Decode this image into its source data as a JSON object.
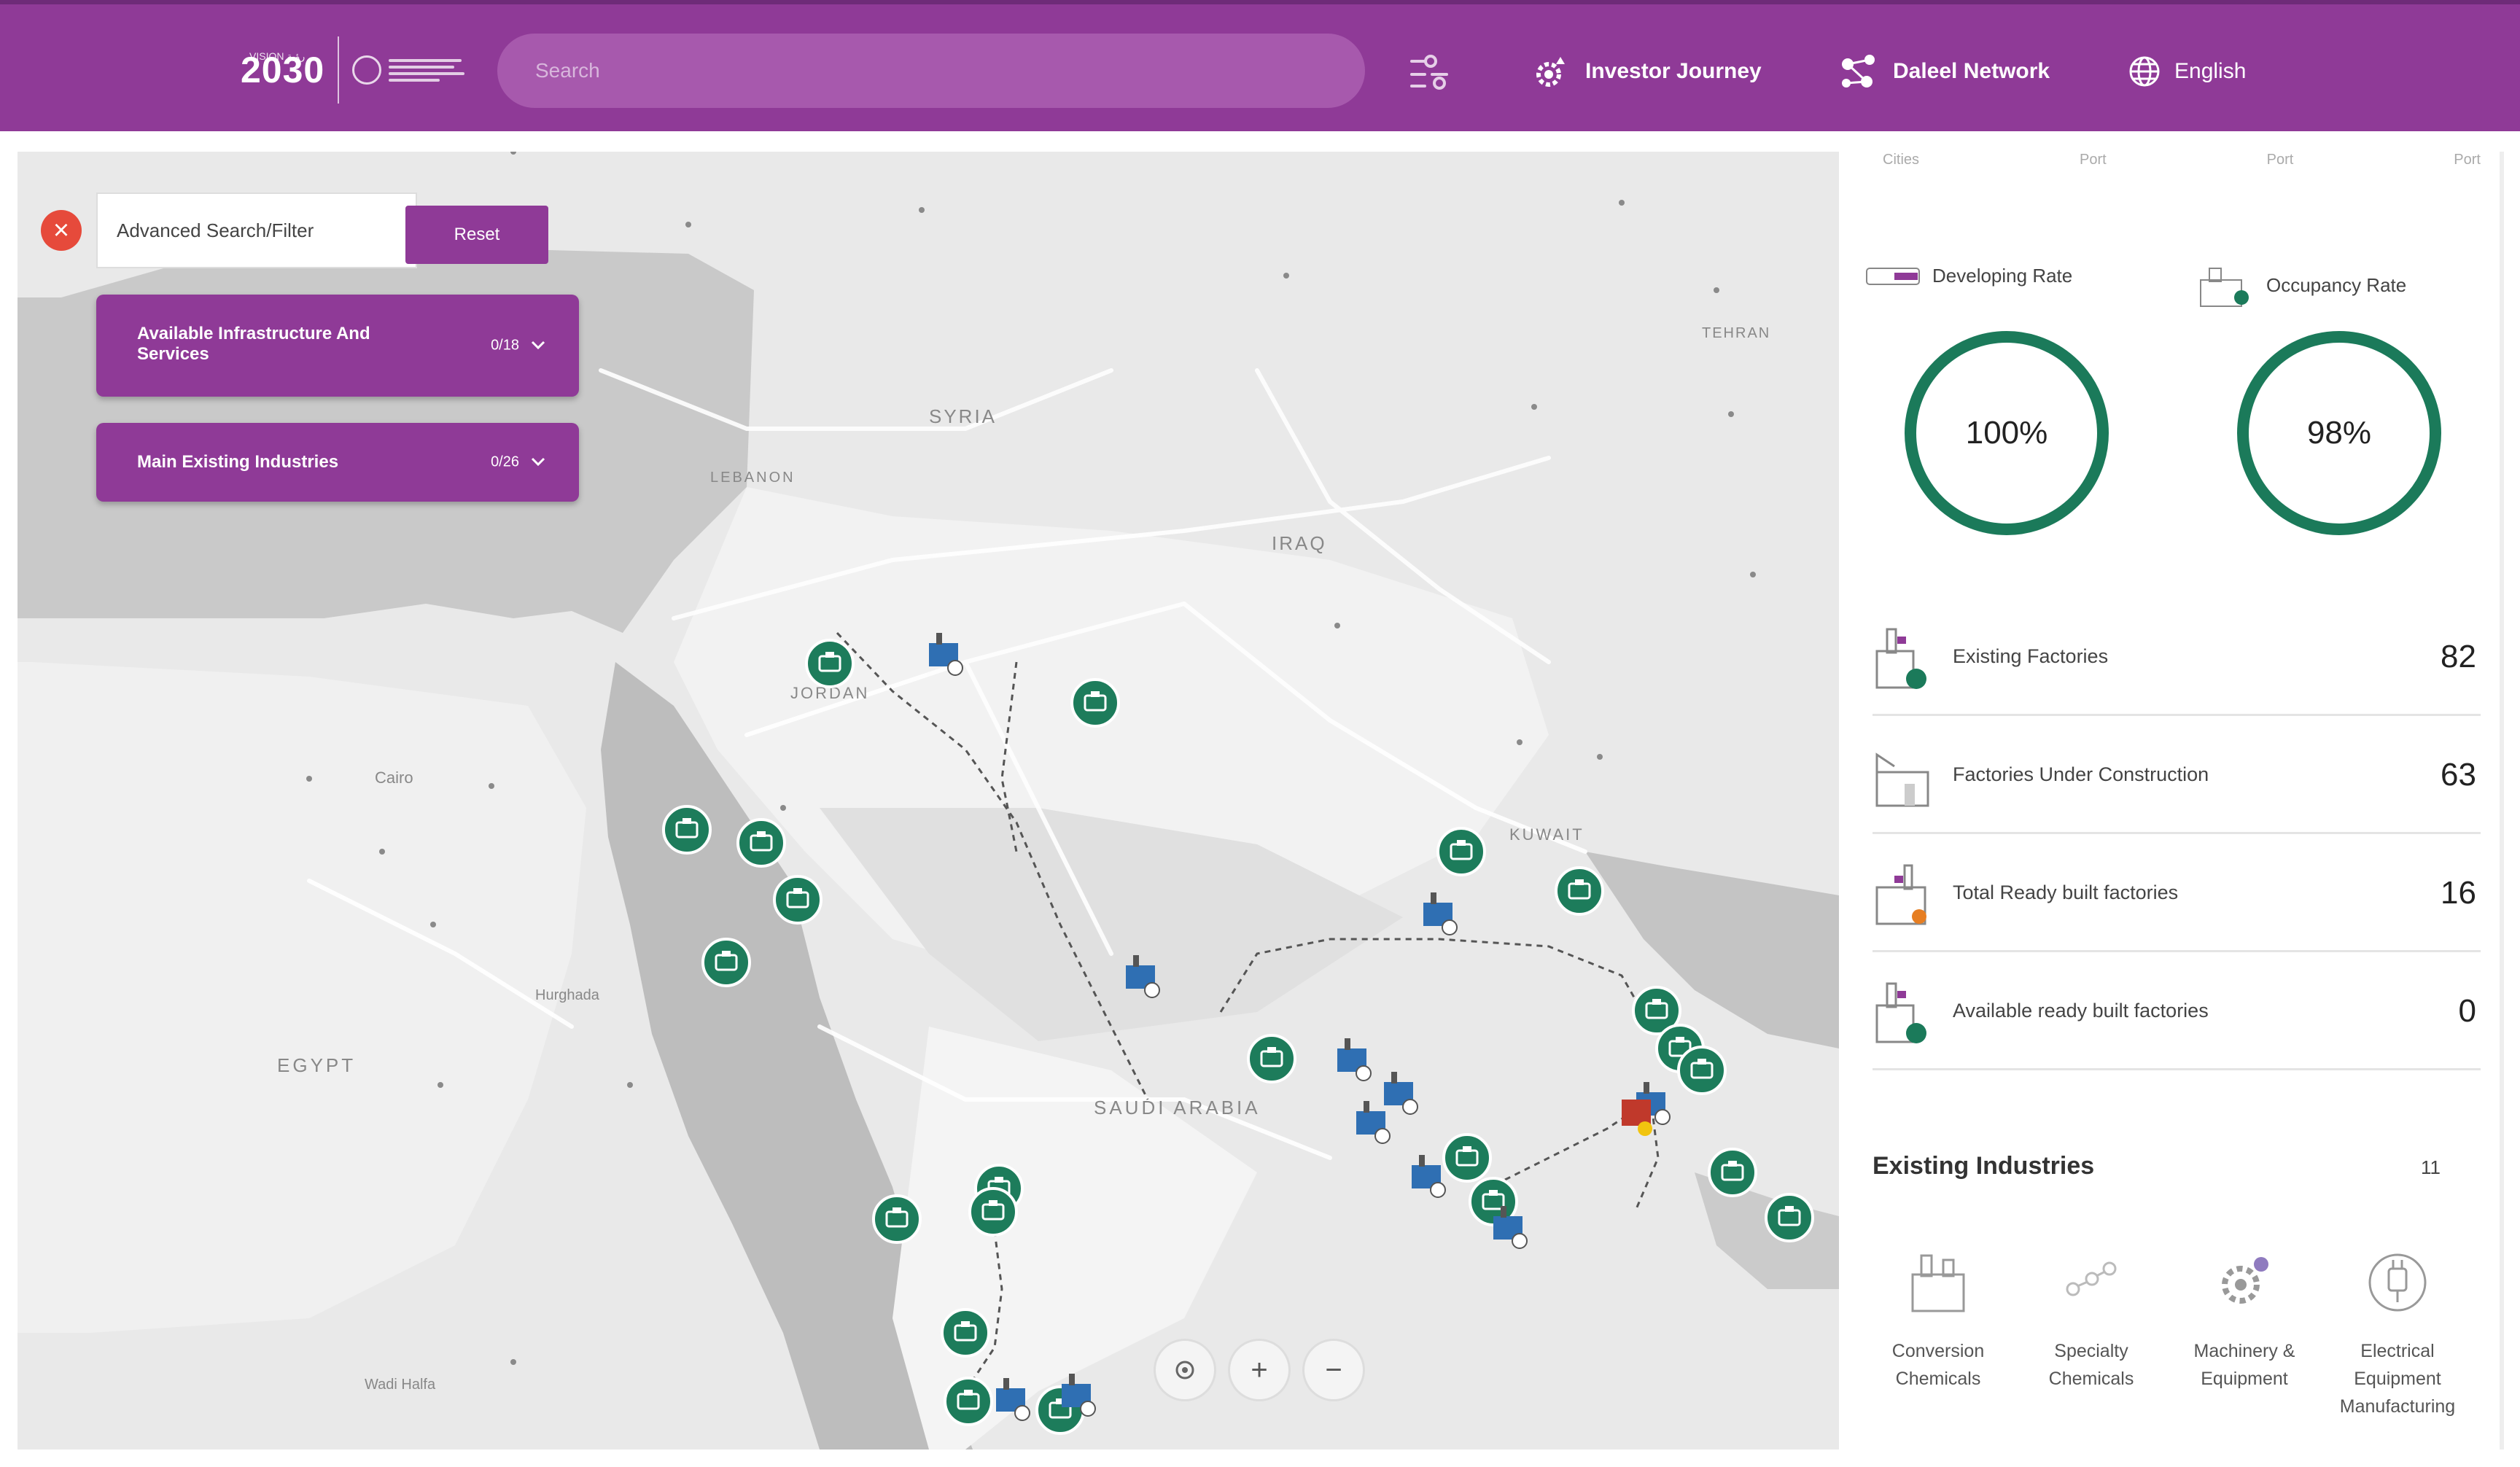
{
  "header": {
    "logo_text": "2030",
    "logo_small": "VISION رؤية",
    "search_placeholder": "Search",
    "nav": {
      "investor": "Investor Journey",
      "daleel": "Daleel Network",
      "lang": "English"
    }
  },
  "filters": {
    "advanced_label": "Advanced Search/Filter",
    "reset_label": "Reset",
    "accordions": [
      {
        "label_l1": "Available Infrastructure And",
        "label_l2": "Services",
        "count": "0/18"
      },
      {
        "label_l1": "Main Existing Industries",
        "label_l2": "",
        "count": "0/26"
      }
    ]
  },
  "map": {
    "labels": {
      "syria": "SYRIA",
      "iraq": "IRAQ",
      "jordan": "JORDAN",
      "lebanon": "LEBANON",
      "egypt": "EGYPT",
      "saudi": "SAUDI ARABIA",
      "kuwait": "KUWAIT",
      "tehran": "TEHRAN",
      "cairo": "Cairo",
      "hurghada": "Hurghada",
      "wadi_halfa": "Wadi Halfa"
    },
    "controls": {
      "locate": "locate-icon",
      "zoom_in": "+",
      "zoom_out": "−"
    }
  },
  "panel": {
    "top_labels": [
      "Cities",
      "Port",
      "Port",
      "Port"
    ],
    "developing": {
      "label": "Developing Rate",
      "value": "100%",
      "fraction": 1.0
    },
    "occupancy": {
      "label": "Occupancy Rate",
      "value": "98%",
      "fraction": 0.98
    },
    "rows": [
      {
        "label": "Existing Factories",
        "value": "82"
      },
      {
        "label": "Factories Under Construction",
        "value": "63"
      },
      {
        "label": "Total Ready built factories",
        "value": "16"
      },
      {
        "label": "Available ready built factories",
        "value": "0"
      }
    ],
    "industries_title": "Existing Industries",
    "industries_count": "11",
    "industries": [
      {
        "l1": "Conversion",
        "l2": "Chemicals",
        "l3": ""
      },
      {
        "l1": "Specialty",
        "l2": "Chemicals",
        "l3": ""
      },
      {
        "l1": "Machinery &",
        "l2": "Equipment",
        "l3": ""
      },
      {
        "l1": "Electrical",
        "l2": "Equipment",
        "l3": "Manufacturing"
      }
    ]
  },
  "colors": {
    "brand": "#8f3a97",
    "accent": "#1b7a5a",
    "danger": "#e64a3b"
  }
}
